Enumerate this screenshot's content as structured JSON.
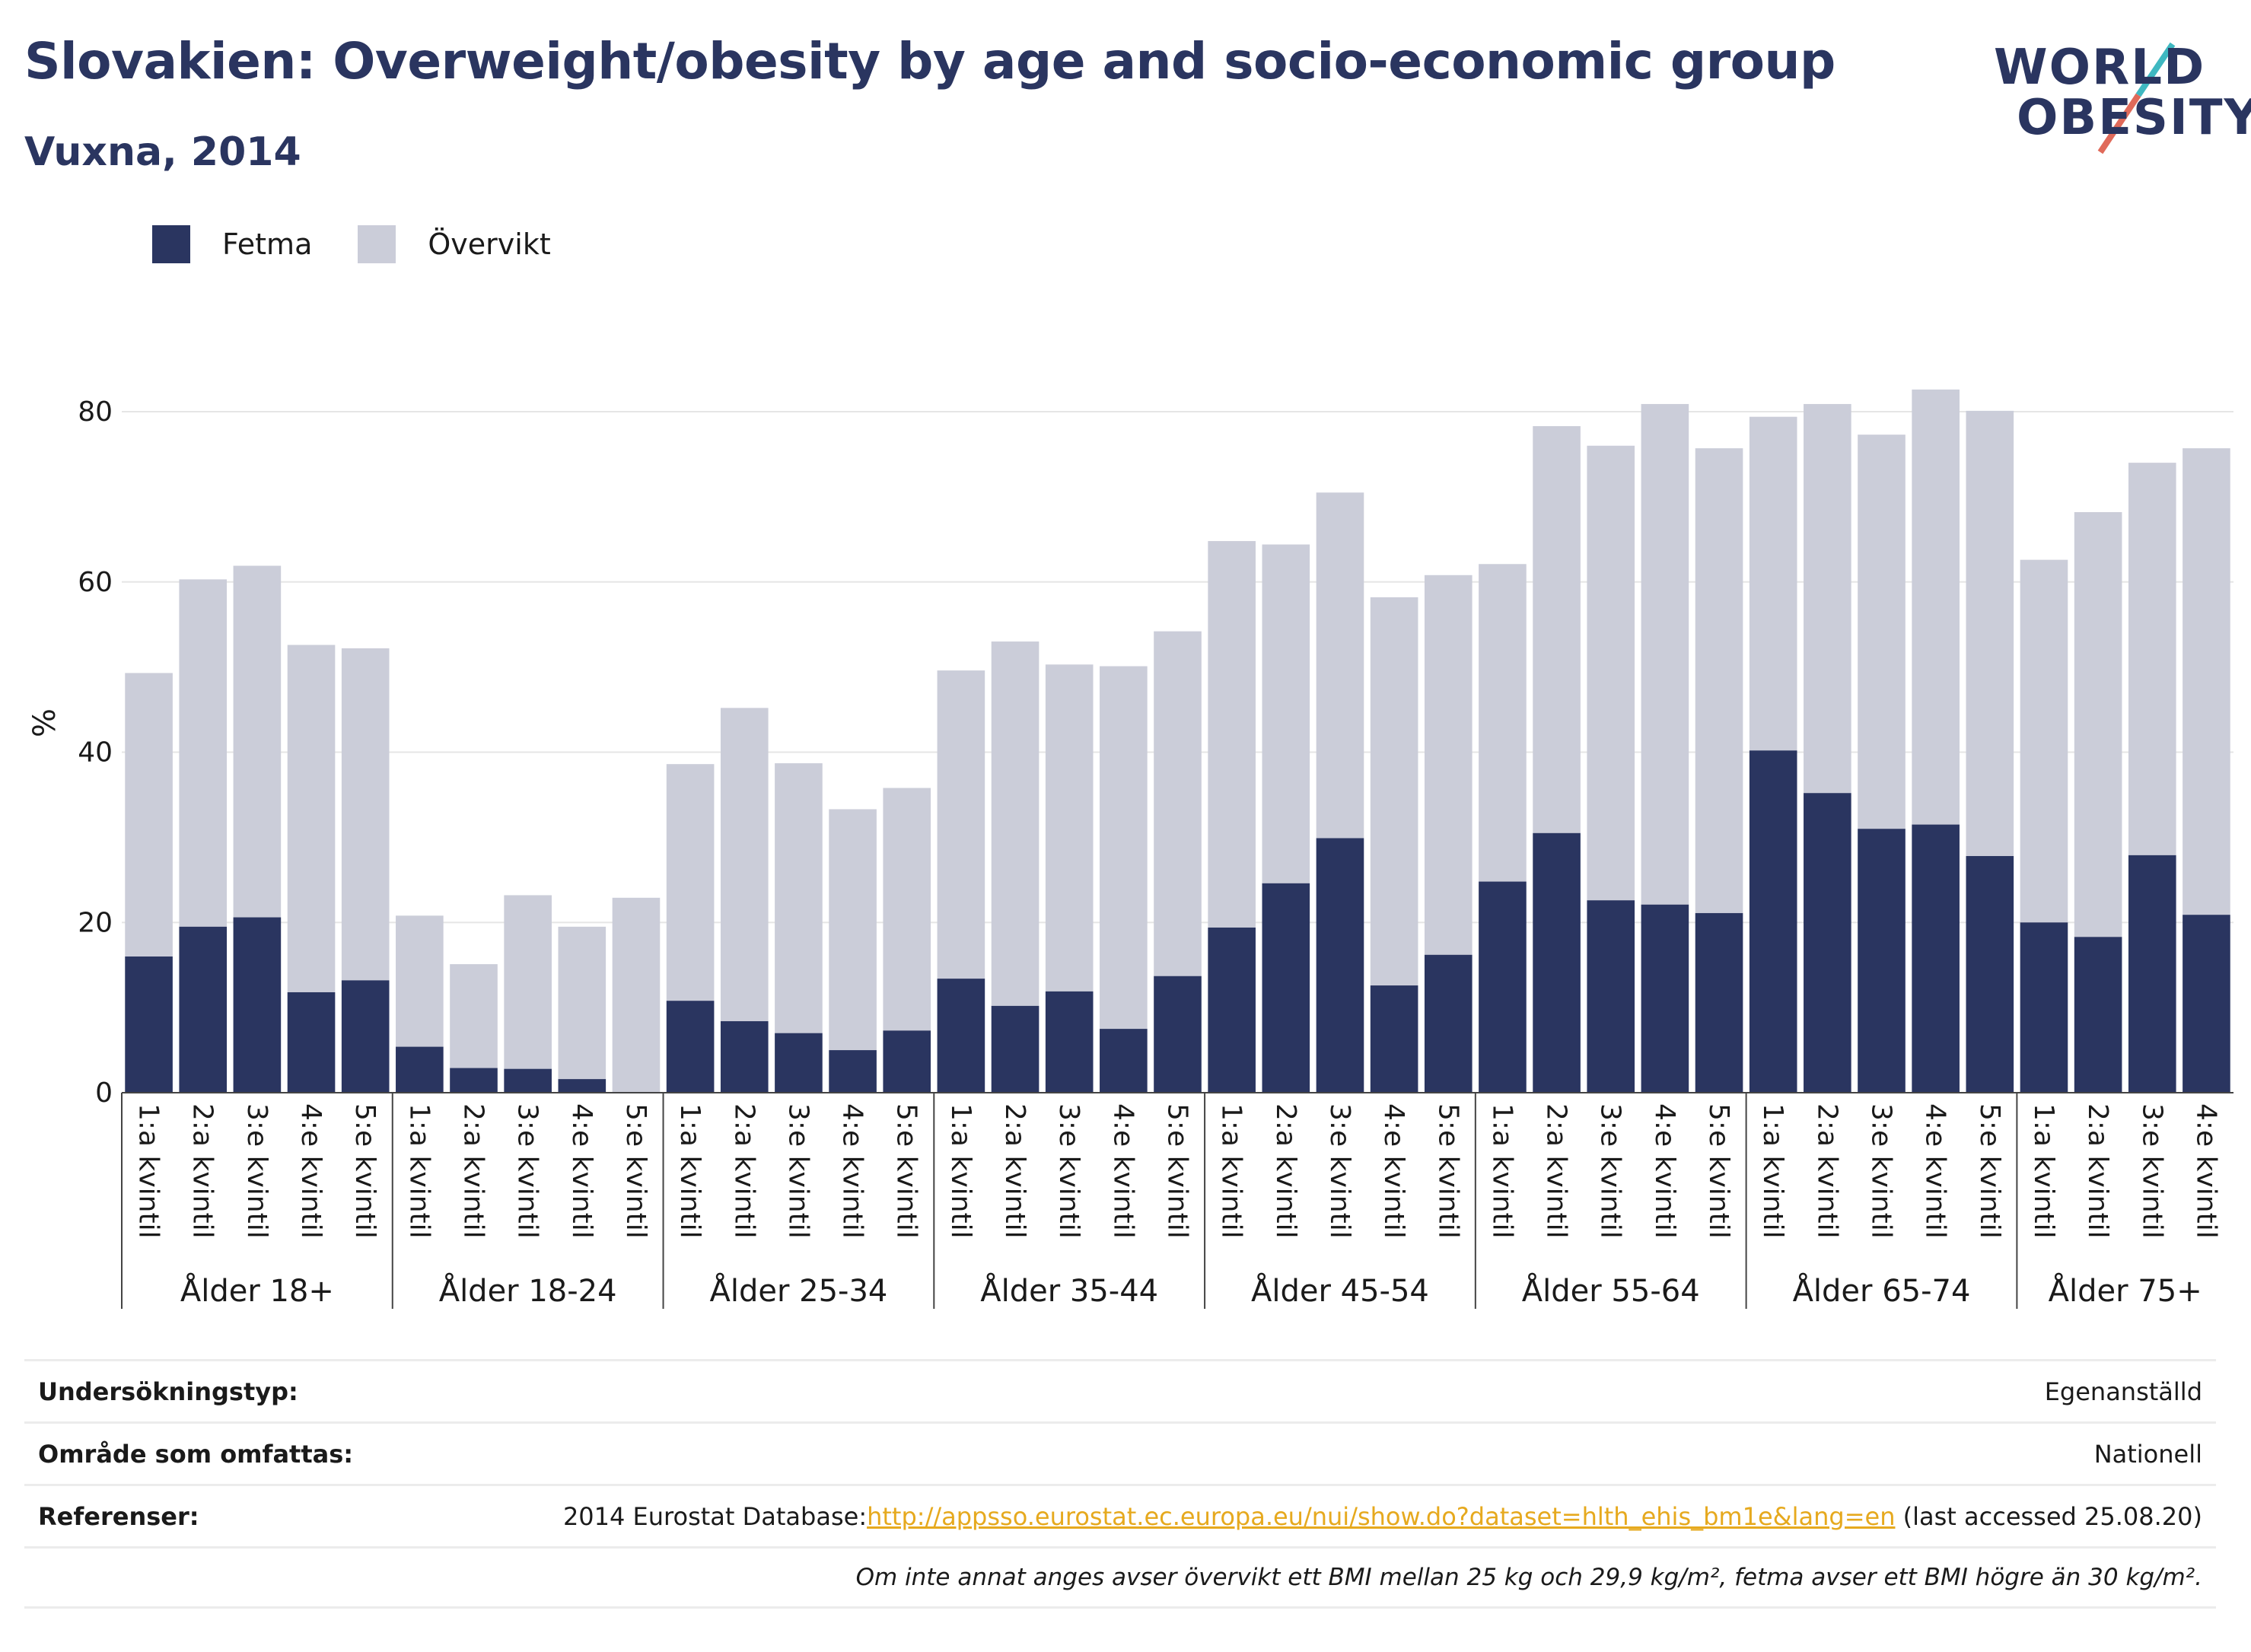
{
  "header": {
    "title": "Slovakien: Overweight/obesity by age and socio-economic group",
    "subtitle": "Vuxna, 2014"
  },
  "logo": {
    "line1": "WORLD",
    "line2": "OBESITY"
  },
  "colors": {
    "fetma": "#2a3560",
    "overvikt": "#cbcdd9",
    "accent_teal": "#3fb8c1",
    "accent_red": "#e06a5a"
  },
  "chart_data": {
    "type": "bar",
    "stacked": true,
    "ylabel": "%",
    "ylim": [
      0,
      90
    ],
    "yticks": [
      0,
      20,
      40,
      60,
      80
    ],
    "grid": true,
    "legend_placement": "top-left",
    "groups": [
      "Ålder 18+",
      "Ålder 18-24",
      "Ålder 25-34",
      "Ålder 35-44",
      "Ålder 45-54",
      "Ålder 55-64",
      "Ålder 65-74",
      "Ålder 75+"
    ],
    "group_categories": [
      [
        "1:a kvintil",
        "2:a kvintil",
        "3:e kvintil",
        "4:e kvintil",
        "5:e kvintil"
      ],
      [
        "1:a kvintil",
        "2:a kvintil",
        "3:e kvintil",
        "4:e kvintil",
        "5:e kvintil"
      ],
      [
        "1:a kvintil",
        "2:a kvintil",
        "3:e kvintil",
        "4:e kvintil",
        "5:e kvintil"
      ],
      [
        "1:a kvintil",
        "2:a kvintil",
        "3:e kvintil",
        "4:e kvintil",
        "5:e kvintil"
      ],
      [
        "1:a kvintil",
        "2:a kvintil",
        "3:e kvintil",
        "4:e kvintil",
        "5:e kvintil"
      ],
      [
        "1:a kvintil",
        "2:a kvintil",
        "3:e kvintil",
        "4:e kvintil",
        "5:e kvintil"
      ],
      [
        "1:a kvintil",
        "2:a kvintil",
        "3:e kvintil",
        "4:e kvintil",
        "5:e kvintil"
      ],
      [
        "1:a kvintil",
        "2:a kvintil",
        "3:e kvintil",
        "4:e kvintil"
      ]
    ],
    "series": [
      {
        "name": "Fetma",
        "values": [
          16.0,
          19.5,
          20.6,
          11.8,
          13.2,
          5.4,
          2.9,
          2.8,
          1.6,
          0.0,
          10.8,
          8.4,
          7.0,
          5.0,
          7.3,
          13.4,
          10.2,
          11.9,
          7.5,
          13.7,
          19.4,
          24.6,
          29.9,
          12.6,
          16.2,
          24.8,
          30.5,
          22.6,
          22.1,
          21.1,
          40.2,
          35.2,
          31.0,
          31.5,
          27.8,
          20.0,
          18.3,
          27.9,
          20.9
        ]
      },
      {
        "name": "Övervikt",
        "values": [
          33.3,
          40.8,
          41.3,
          40.8,
          39.0,
          15.4,
          12.2,
          20.4,
          17.9,
          22.9,
          27.8,
          36.8,
          31.7,
          28.3,
          28.5,
          36.2,
          42.8,
          38.4,
          42.6,
          40.5,
          45.4,
          39.8,
          40.6,
          45.6,
          44.6,
          37.3,
          47.8,
          53.4,
          58.8,
          54.6,
          39.2,
          45.7,
          46.3,
          51.1,
          52.3,
          42.6,
          49.9,
          46.1,
          54.8
        ]
      }
    ]
  },
  "legend": [
    {
      "label": "Fetma"
    },
    {
      "label": "Övervikt"
    }
  ],
  "info": {
    "survey_type_label": "Undersökningstyp:",
    "survey_type_value": "Egenanställd",
    "area_label": "Område som omfattas:",
    "area_value": "Nationell",
    "references_label": "Referenser:",
    "references_prefix": "2014 Eurostat Database:",
    "references_link": "http://appsso.eurostat.ec.europa.eu/nui/show.do?dataset=hlth_ehis_bm1e&lang=en",
    "references_suffix": " (last accessed 25.08.20)",
    "note": "Om inte annat anges avser övervikt ett BMI mellan 25 kg och 29,9 kg/m², fetma avser ett BMI högre än 30 kg/m²."
  }
}
